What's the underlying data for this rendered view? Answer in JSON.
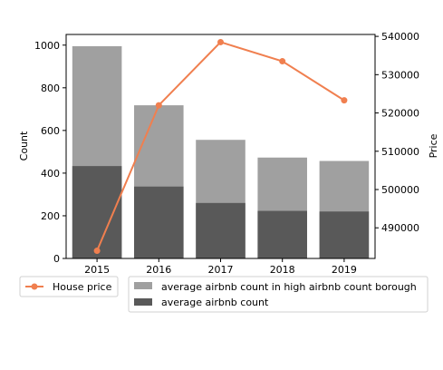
{
  "chart_data": {
    "type": "bar",
    "categories": [
      "2015",
      "2016",
      "2017",
      "2018",
      "2019"
    ],
    "series": [
      {
        "name": "average airbnb count in high airbnb count borough",
        "axis": "left",
        "kind": "bar",
        "values": [
          995,
          718,
          556,
          473,
          457
        ],
        "color": "#a0a0a0"
      },
      {
        "name": "average airbnb count",
        "axis": "left",
        "kind": "bar",
        "values": [
          433,
          337,
          260,
          223,
          220
        ],
        "color": "#595959"
      },
      {
        "name": "House price",
        "axis": "right",
        "kind": "line",
        "values": [
          484000,
          522000,
          538500,
          533500,
          523300
        ],
        "color": "#f07f4f"
      }
    ],
    "ylabel": "Count",
    "y2label": "Price",
    "ylim": [
      0,
      1050
    ],
    "y2lim": [
      482000,
      540500
    ],
    "yticks": [
      0,
      200,
      400,
      600,
      800,
      1000
    ],
    "y2ticks": [
      490000,
      500000,
      510000,
      520000,
      530000,
      540000
    ],
    "grid": false,
    "legend_placement": "below"
  }
}
